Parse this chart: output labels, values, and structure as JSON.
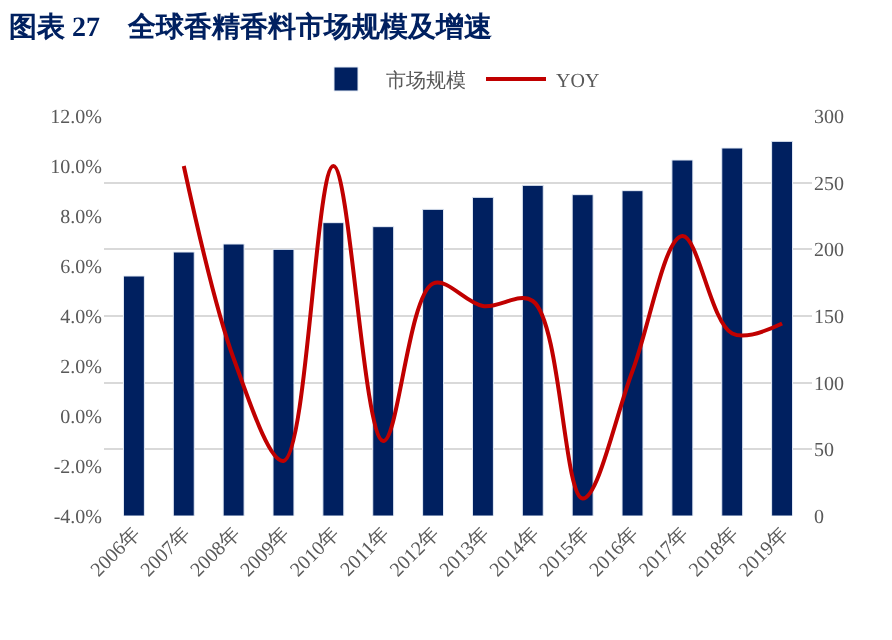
{
  "chart_data": {
    "type": "bar",
    "title": "图表 27　全球香精香料市场规模及增速",
    "categories": [
      "2006年",
      "2007年",
      "2008年",
      "2009年",
      "2010年",
      "2011年",
      "2012年",
      "2013年",
      "2014年",
      "2015年",
      "2016年",
      "2017年",
      "2018年",
      "2019年"
    ],
    "series": [
      {
        "name": "市场规模",
        "axis": "y2",
        "color": "#002060",
        "values": [
          180,
          198,
          204,
          200,
          220,
          217,
          230,
          239,
          248,
          241,
          244,
          267,
          276,
          281
        ]
      },
      {
        "name": "YOY",
        "type": "line",
        "axis": "y",
        "color": "#c00000",
        "values": [
          null,
          10.0,
          2.3,
          -1.8,
          10.0,
          -1.0,
          5.3,
          4.4,
          4.6,
          -3.3,
          1.8,
          7.2,
          3.3,
          3.7
        ]
      }
    ],
    "ylim": [
      -4,
      12
    ],
    "yticks": [
      {
        "value": -4,
        "label": "-4.0%"
      },
      {
        "value": -2,
        "label": "-2.0%"
      },
      {
        "value": 0,
        "label": "0.0%"
      },
      {
        "value": 2,
        "label": "2.0%"
      },
      {
        "value": 4,
        "label": "4.0%"
      },
      {
        "value": 6,
        "label": "6.0%"
      },
      {
        "value": 8,
        "label": "8.0%"
      },
      {
        "value": 10,
        "label": "10.0%"
      },
      {
        "value": 12,
        "label": "12.0%"
      }
    ],
    "y2lim": [
      0,
      300
    ],
    "y2ticks": [
      0,
      50,
      100,
      150,
      200,
      250,
      300
    ],
    "grid": "y",
    "legend": "top",
    "marker": "none",
    "line_style": "solid"
  }
}
